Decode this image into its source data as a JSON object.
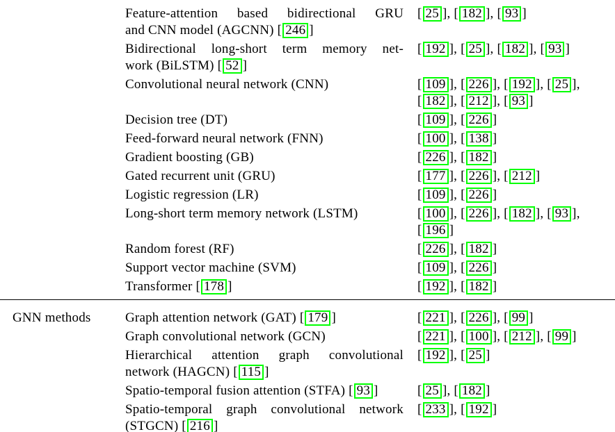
{
  "styles": {
    "citation_border_color": "#00ff00",
    "rule_color": "#000000",
    "background": "#ffffff",
    "text_color": "#000000"
  },
  "citation_style": {
    "open": "[",
    "close": "]",
    "separator": ", "
  },
  "table": {
    "sections": [
      {
        "category_label": "",
        "rows": [
          {
            "method_lines": [
              "Feature-attention based bidirectional GRU",
              "and CNN model (AGCNN) [[246]]"
            ],
            "citations": [
              "25",
              "182",
              "93"
            ]
          },
          {
            "method_lines": [
              "Bidirectional long-short term memory net-",
              "work (BiLSTM) [[52]]"
            ],
            "citations": [
              "192",
              "25",
              "182",
              "93"
            ]
          },
          {
            "method_lines": [
              "Convolutional neural network (CNN)"
            ],
            "citations": [
              "109",
              "226",
              "192",
              "25",
              "182",
              "212",
              "93"
            ]
          },
          {
            "method_lines": [
              "Decision tree (DT)"
            ],
            "citations": [
              "109",
              "226"
            ]
          },
          {
            "method_lines": [
              "Feed-forward neural network (FNN)"
            ],
            "citations": [
              "100",
              "138"
            ]
          },
          {
            "method_lines": [
              "Gradient boosting (GB)"
            ],
            "citations": [
              "226",
              "182"
            ]
          },
          {
            "method_lines": [
              "Gated recurrent unit (GRU)"
            ],
            "citations": [
              "177",
              "226",
              "212"
            ]
          },
          {
            "method_lines": [
              "Logistic regression (LR)"
            ],
            "citations": [
              "109",
              "226"
            ]
          },
          {
            "method_lines": [
              "Long-short term memory network (LSTM)"
            ],
            "citations": [
              "100",
              "226",
              "182",
              "93",
              "196"
            ]
          },
          {
            "method_lines": [
              "Random forest (RF)"
            ],
            "citations": [
              "226",
              "182"
            ]
          },
          {
            "method_lines": [
              "Support vector machine (SVM)"
            ],
            "citations": [
              "109",
              "226"
            ]
          },
          {
            "method_lines": [
              "Transformer [[178]]"
            ],
            "citations": [
              "192",
              "182"
            ]
          }
        ]
      },
      {
        "category_label": "GNN methods",
        "rows": [
          {
            "method_lines": [
              "Graph attention network (GAT) [[179]]"
            ],
            "citations": [
              "221",
              "226",
              "99"
            ]
          },
          {
            "method_lines": [
              "Graph convolutional network (GCN)"
            ],
            "citations": [
              "221",
              "100",
              "212",
              "99"
            ]
          },
          {
            "method_lines": [
              "Hierarchical attention graph convolutional",
              "network (HAGCN) [[115]]"
            ],
            "citations": [
              "192",
              "25"
            ]
          },
          {
            "method_lines": [
              "Spatio-temporal fusion attention (STFA) [[93]]"
            ],
            "citations": [
              "25",
              "182"
            ]
          },
          {
            "method_lines": [
              "Spatio-temporal graph convolutional network",
              "(STGCN) [[216]]"
            ],
            "citations": [
              "233",
              "192"
            ]
          }
        ]
      }
    ]
  }
}
